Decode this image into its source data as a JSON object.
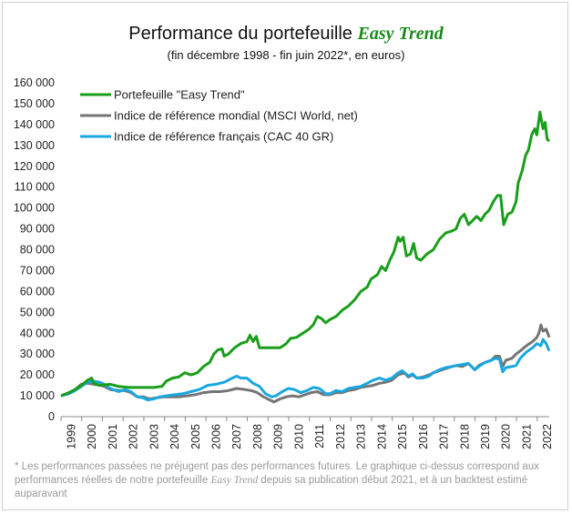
{
  "header": {
    "title_prefix": "Performance du portefeuille ",
    "title_brand": "Easy Trend",
    "subtitle": "(fin décembre 1998 - fin juin 2022*, en euros)"
  },
  "footnote": {
    "part1": "* Les performances passées ne préjugent pas des performances futures. Le graphique ci-dessus correspond aux performances réelles de notre portefeuille ",
    "brand": "Easy Trend",
    "part2": " depuis sa publication début 2021, et à un backtest estimé auparavant"
  },
  "chart_data": {
    "type": "line",
    "title": "Performance du portefeuille Easy Trend",
    "subtitle": "(fin décembre 1998 - fin juin 2022*, en euros)",
    "xlabel": "",
    "ylabel": "",
    "xlim": [
      1998.92,
      2022.5
    ],
    "ylim": [
      0,
      160000
    ],
    "x_ticks": [
      "1999",
      "2000",
      "2001",
      "2002",
      "2003",
      "2004",
      "2005",
      "2006",
      "2007",
      "2008",
      "2009",
      "2010",
      "2011",
      "2012",
      "2013",
      "2014",
      "2015",
      "2016",
      "2017",
      "2018",
      "2019",
      "2020",
      "2021",
      "2022"
    ],
    "y_ticks": [
      "0",
      "10 000",
      "20 000",
      "30 000",
      "40 000",
      "50 000",
      "60 000",
      "70 000",
      "80 000",
      "90 000",
      "100 000",
      "110 000",
      "120 000",
      "130 000",
      "140 000",
      "150 000",
      "160 000"
    ],
    "y_tick_values": [
      0,
      10000,
      20000,
      30000,
      40000,
      50000,
      60000,
      70000,
      80000,
      90000,
      100000,
      110000,
      120000,
      130000,
      140000,
      150000,
      160000
    ],
    "grid": false,
    "legend_position": "top-left",
    "series": [
      {
        "name": "Portefeuille \"Easy Trend\"",
        "color": "#1a9e1a",
        "points": [
          [
            1998.92,
            10000
          ],
          [
            1999.3,
            11500
          ],
          [
            1999.6,
            13000
          ],
          [
            1999.9,
            15000
          ],
          [
            2000.2,
            17500
          ],
          [
            2000.4,
            18500
          ],
          [
            2000.5,
            16000
          ],
          [
            2000.8,
            15000
          ],
          [
            2001.3,
            15500
          ],
          [
            2001.7,
            14500
          ],
          [
            2002.2,
            14000
          ],
          [
            2002.7,
            14000
          ],
          [
            2003.0,
            14000
          ],
          [
            2003.4,
            14000
          ],
          [
            2003.8,
            14500
          ],
          [
            2004.0,
            17000
          ],
          [
            2004.3,
            18500
          ],
          [
            2004.6,
            19000
          ],
          [
            2004.9,
            21000
          ],
          [
            2005.2,
            20000
          ],
          [
            2005.5,
            21000
          ],
          [
            2005.8,
            24000
          ],
          [
            2006.1,
            26000
          ],
          [
            2006.3,
            30000
          ],
          [
            2006.5,
            32000
          ],
          [
            2006.7,
            32500
          ],
          [
            2006.8,
            29000
          ],
          [
            2007.0,
            30000
          ],
          [
            2007.3,
            33000
          ],
          [
            2007.6,
            35000
          ],
          [
            2007.9,
            36000
          ],
          [
            2008.05,
            39000
          ],
          [
            2008.2,
            36000
          ],
          [
            2008.35,
            38500
          ],
          [
            2008.5,
            33000
          ],
          [
            2008.8,
            33000
          ],
          [
            2009.2,
            33000
          ],
          [
            2009.5,
            33000
          ],
          [
            2009.8,
            35000
          ],
          [
            2010.0,
            37500
          ],
          [
            2010.3,
            38000
          ],
          [
            2010.6,
            40000
          ],
          [
            2010.9,
            42000
          ],
          [
            2011.1,
            44000
          ],
          [
            2011.3,
            48000
          ],
          [
            2011.5,
            47000
          ],
          [
            2011.7,
            45000
          ],
          [
            2011.9,
            46500
          ],
          [
            2012.2,
            48000
          ],
          [
            2012.5,
            51000
          ],
          [
            2012.8,
            53000
          ],
          [
            2013.1,
            56000
          ],
          [
            2013.4,
            60000
          ],
          [
            2013.7,
            62000
          ],
          [
            2013.9,
            66000
          ],
          [
            2014.2,
            68000
          ],
          [
            2014.4,
            72000
          ],
          [
            2014.6,
            70000
          ],
          [
            2014.8,
            75000
          ],
          [
            2015.0,
            79000
          ],
          [
            2015.2,
            86000
          ],
          [
            2015.3,
            84000
          ],
          [
            2015.45,
            86000
          ],
          [
            2015.6,
            77000
          ],
          [
            2015.8,
            78000
          ],
          [
            2015.95,
            83000
          ],
          [
            2016.1,
            76000
          ],
          [
            2016.3,
            75000
          ],
          [
            2016.6,
            78000
          ],
          [
            2016.9,
            80000
          ],
          [
            2017.2,
            85000
          ],
          [
            2017.5,
            88000
          ],
          [
            2017.8,
            89000
          ],
          [
            2018.0,
            90000
          ],
          [
            2018.2,
            95000
          ],
          [
            2018.4,
            97000
          ],
          [
            2018.6,
            92000
          ],
          [
            2018.8,
            94000
          ],
          [
            2019.0,
            96000
          ],
          [
            2019.2,
            94000
          ],
          [
            2019.4,
            97000
          ],
          [
            2019.6,
            99000
          ],
          [
            2019.8,
            103000
          ],
          [
            2020.0,
            106000
          ],
          [
            2020.15,
            106000
          ],
          [
            2020.3,
            92000
          ],
          [
            2020.5,
            97000
          ],
          [
            2020.7,
            98000
          ],
          [
            2020.9,
            103000
          ],
          [
            2021.0,
            112000
          ],
          [
            2021.2,
            118000
          ],
          [
            2021.35,
            125000
          ],
          [
            2021.5,
            128000
          ],
          [
            2021.65,
            135000
          ],
          [
            2021.8,
            138000
          ],
          [
            2021.9,
            135000
          ],
          [
            2022.05,
            146000
          ],
          [
            2022.2,
            138000
          ],
          [
            2022.3,
            141000
          ],
          [
            2022.4,
            133000
          ],
          [
            2022.5,
            132000
          ]
        ]
      },
      {
        "name": "Indice de référence mondial (MSCI World, net)",
        "color": "#757575",
        "points": [
          [
            1998.92,
            10000
          ],
          [
            1999.3,
            11500
          ],
          [
            1999.6,
            13000
          ],
          [
            1999.9,
            15500
          ],
          [
            2000.2,
            16000
          ],
          [
            2000.5,
            15500
          ],
          [
            2000.8,
            15000
          ],
          [
            2001.0,
            14500
          ],
          [
            2001.3,
            13000
          ],
          [
            2001.7,
            12500
          ],
          [
            2002.0,
            12500
          ],
          [
            2002.3,
            11500
          ],
          [
            2002.6,
            9500
          ],
          [
            2002.9,
            9500
          ],
          [
            2003.2,
            8500
          ],
          [
            2003.5,
            9000
          ],
          [
            2003.9,
            9500
          ],
          [
            2004.2,
            9500
          ],
          [
            2004.6,
            9500
          ],
          [
            2005.0,
            10000
          ],
          [
            2005.4,
            10500
          ],
          [
            2005.8,
            11500
          ],
          [
            2006.2,
            12000
          ],
          [
            2006.6,
            12000
          ],
          [
            2007.0,
            12500
          ],
          [
            2007.4,
            13500
          ],
          [
            2007.8,
            13000
          ],
          [
            2008.1,
            12500
          ],
          [
            2008.4,
            11500
          ],
          [
            2008.7,
            9500
          ],
          [
            2009.0,
            8000
          ],
          [
            2009.2,
            7000
          ],
          [
            2009.5,
            8500
          ],
          [
            2009.8,
            9500
          ],
          [
            2010.1,
            10000
          ],
          [
            2010.4,
            9500
          ],
          [
            2010.7,
            10500
          ],
          [
            2011.0,
            11500
          ],
          [
            2011.3,
            12000
          ],
          [
            2011.6,
            10500
          ],
          [
            2011.9,
            10500
          ],
          [
            2012.2,
            11500
          ],
          [
            2012.5,
            11500
          ],
          [
            2012.8,
            12500
          ],
          [
            2013.1,
            13000
          ],
          [
            2013.4,
            14000
          ],
          [
            2013.7,
            14500
          ],
          [
            2014.0,
            15000
          ],
          [
            2014.3,
            16000
          ],
          [
            2014.6,
            16500
          ],
          [
            2014.9,
            17500
          ],
          [
            2015.2,
            20000
          ],
          [
            2015.5,
            21000
          ],
          [
            2015.7,
            19000
          ],
          [
            2015.9,
            20000
          ],
          [
            2016.1,
            18500
          ],
          [
            2016.4,
            19000
          ],
          [
            2016.7,
            20000
          ],
          [
            2016.9,
            21000
          ],
          [
            2017.2,
            22000
          ],
          [
            2017.5,
            23000
          ],
          [
            2017.8,
            24000
          ],
          [
            2018.0,
            24500
          ],
          [
            2018.3,
            24000
          ],
          [
            2018.6,
            25500
          ],
          [
            2018.9,
            22500
          ],
          [
            2019.1,
            24500
          ],
          [
            2019.4,
            26000
          ],
          [
            2019.7,
            27000
          ],
          [
            2019.9,
            29000
          ],
          [
            2020.1,
            29000
          ],
          [
            2020.25,
            24000
          ],
          [
            2020.4,
            27000
          ],
          [
            2020.7,
            28000
          ],
          [
            2020.9,
            30000
          ],
          [
            2021.1,
            31500
          ],
          [
            2021.4,
            34000
          ],
          [
            2021.7,
            36000
          ],
          [
            2021.9,
            38000
          ],
          [
            2022.0,
            40000
          ],
          [
            2022.1,
            44000
          ],
          [
            2022.2,
            41000
          ],
          [
            2022.35,
            42000
          ],
          [
            2022.5,
            38000
          ]
        ]
      },
      {
        "name": "Indice de référence français (CAC 40 GR)",
        "color": "#19a7e0",
        "points": [
          [
            1998.92,
            10000
          ],
          [
            1999.3,
            11000
          ],
          [
            1999.6,
            12500
          ],
          [
            1999.9,
            14500
          ],
          [
            2000.2,
            16500
          ],
          [
            2000.5,
            17000
          ],
          [
            2000.8,
            16500
          ],
          [
            2001.0,
            15500
          ],
          [
            2001.3,
            13500
          ],
          [
            2001.7,
            12000
          ],
          [
            2002.0,
            13000
          ],
          [
            2002.3,
            12000
          ],
          [
            2002.6,
            9500
          ],
          [
            2002.9,
            9000
          ],
          [
            2003.1,
            8000
          ],
          [
            2003.4,
            8500
          ],
          [
            2003.7,
            9500
          ],
          [
            2004.0,
            10000
          ],
          [
            2004.4,
            10500
          ],
          [
            2004.8,
            11000
          ],
          [
            2005.2,
            12000
          ],
          [
            2005.6,
            13000
          ],
          [
            2006.0,
            15000
          ],
          [
            2006.4,
            15500
          ],
          [
            2006.8,
            16500
          ],
          [
            2007.1,
            18000
          ],
          [
            2007.4,
            19500
          ],
          [
            2007.6,
            18500
          ],
          [
            2007.9,
            18500
          ],
          [
            2008.2,
            16000
          ],
          [
            2008.5,
            14500
          ],
          [
            2008.8,
            11000
          ],
          [
            2009.1,
            9500
          ],
          [
            2009.3,
            10000
          ],
          [
            2009.6,
            12000
          ],
          [
            2009.9,
            13500
          ],
          [
            2010.2,
            13000
          ],
          [
            2010.5,
            11500
          ],
          [
            2010.8,
            12500
          ],
          [
            2011.1,
            14000
          ],
          [
            2011.4,
            13500
          ],
          [
            2011.7,
            11000
          ],
          [
            2011.9,
            11000
          ],
          [
            2012.2,
            12500
          ],
          [
            2012.5,
            12000
          ],
          [
            2012.8,
            13500
          ],
          [
            2013.1,
            14000
          ],
          [
            2013.4,
            14500
          ],
          [
            2013.7,
            16000
          ],
          [
            2014.0,
            17500
          ],
          [
            2014.3,
            18500
          ],
          [
            2014.6,
            17500
          ],
          [
            2014.9,
            18500
          ],
          [
            2015.2,
            21000
          ],
          [
            2015.4,
            22000
          ],
          [
            2015.7,
            19500
          ],
          [
            2015.9,
            20500
          ],
          [
            2016.1,
            18500
          ],
          [
            2016.4,
            18500
          ],
          [
            2016.7,
            19500
          ],
          [
            2016.9,
            21000
          ],
          [
            2017.2,
            22500
          ],
          [
            2017.5,
            23500
          ],
          [
            2017.8,
            24000
          ],
          [
            2018.0,
            24500
          ],
          [
            2018.3,
            25000
          ],
          [
            2018.6,
            25500
          ],
          [
            2018.9,
            22500
          ],
          [
            2019.1,
            24000
          ],
          [
            2019.4,
            26000
          ],
          [
            2019.7,
            27000
          ],
          [
            2019.9,
            28000
          ],
          [
            2020.1,
            27500
          ],
          [
            2020.25,
            21500
          ],
          [
            2020.4,
            23500
          ],
          [
            2020.7,
            24000
          ],
          [
            2020.9,
            24500
          ],
          [
            2021.1,
            28000
          ],
          [
            2021.4,
            31000
          ],
          [
            2021.7,
            33000
          ],
          [
            2021.9,
            35000
          ],
          [
            2022.1,
            34000
          ],
          [
            2022.2,
            37000
          ],
          [
            2022.35,
            35000
          ],
          [
            2022.5,
            31500
          ]
        ]
      }
    ]
  }
}
